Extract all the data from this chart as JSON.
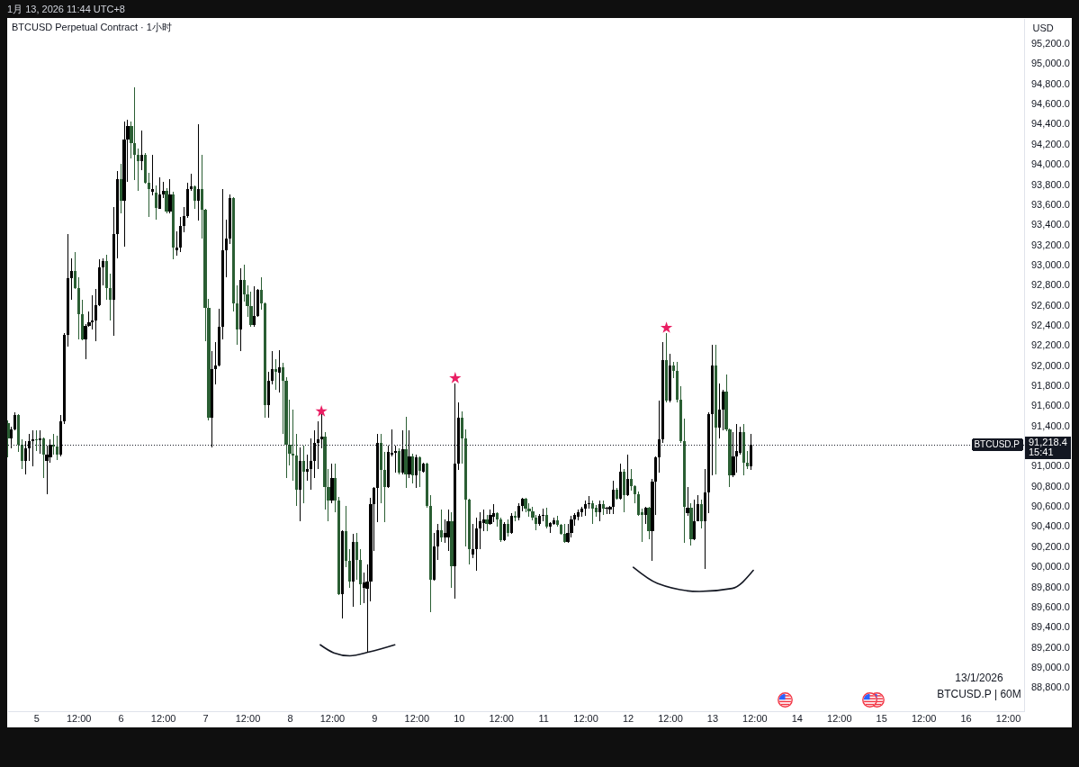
{
  "chart_data": {
    "type": "candlestick",
    "title": "BTCUSD Perpetual Contract · 1小时",
    "ylabel": "USD",
    "annotations": [
      "1月 13, 2026 11:44 UTC+8",
      "13/1/2026",
      "BTCUSD.P | 60M",
      "91,218.4",
      "15:41"
    ],
    "x": [
      "2026-01-04T16:00",
      "2026-01-04T17:00",
      "2026-01-04T18:00",
      "2026-01-04T19:00",
      "2026-01-04T20:00",
      "2026-01-04T21:00",
      "2026-01-04T22:00",
      "2026-01-04T23:00",
      "2026-01-05T00:00",
      "2026-01-05T01:00",
      "2026-01-05T02:00",
      "2026-01-05T03:00",
      "2026-01-05T04:00",
      "2026-01-05T05:00",
      "2026-01-05T06:00",
      "2026-01-05T07:00",
      "2026-01-05T08:00",
      "2026-01-05T09:00",
      "2026-01-05T10:00",
      "2026-01-05T11:00",
      "2026-01-05T12:00",
      "2026-01-05T13:00",
      "2026-01-05T14:00",
      "2026-01-05T15:00",
      "2026-01-05T16:00",
      "2026-01-05T17:00",
      "2026-01-05T18:00",
      "2026-01-05T19:00",
      "2026-01-05T20:00",
      "2026-01-05T21:00",
      "2026-01-05T22:00",
      "2026-01-05T23:00",
      "2026-01-06T00:00",
      "2026-01-06T01:00",
      "2026-01-06T02:00",
      "2026-01-06T03:00",
      "2026-01-06T04:00",
      "2026-01-06T05:00",
      "2026-01-06T06:00",
      "2026-01-06T07:00",
      "2026-01-06T08:00",
      "2026-01-06T09:00",
      "2026-01-06T10:00",
      "2026-01-06T11:00",
      "2026-01-06T12:00",
      "2026-01-06T13:00",
      "2026-01-06T14:00",
      "2026-01-06T15:00",
      "2026-01-06T16:00",
      "2026-01-06T17:00",
      "2026-01-06T18:00",
      "2026-01-06T19:00",
      "2026-01-06T20:00",
      "2026-01-06T21:00",
      "2026-01-06T22:00",
      "2026-01-06T23:00",
      "2026-01-07T00:00",
      "2026-01-07T01:00",
      "2026-01-07T02:00",
      "2026-01-07T03:00",
      "2026-01-07T04:00",
      "2026-01-07T05:00",
      "2026-01-07T06:00",
      "2026-01-07T07:00",
      "2026-01-07T08:00",
      "2026-01-07T09:00",
      "2026-01-07T10:00",
      "2026-01-07T11:00",
      "2026-01-07T12:00",
      "2026-01-07T13:00",
      "2026-01-07T14:00",
      "2026-01-07T15:00",
      "2026-01-07T16:00",
      "2026-01-07T17:00",
      "2026-01-07T18:00",
      "2026-01-07T19:00",
      "2026-01-07T20:00",
      "2026-01-07T21:00",
      "2026-01-07T22:00",
      "2026-01-07T23:00",
      "2026-01-08T00:00",
      "2026-01-08T01:00",
      "2026-01-08T02:00",
      "2026-01-08T03:00",
      "2026-01-08T04:00",
      "2026-01-08T05:00",
      "2026-01-08T06:00",
      "2026-01-08T07:00",
      "2026-01-08T08:00",
      "2026-01-08T09:00",
      "2026-01-08T10:00",
      "2026-01-08T11:00",
      "2026-01-08T12:00",
      "2026-01-08T13:00",
      "2026-01-08T14:00",
      "2026-01-08T15:00",
      "2026-01-08T16:00",
      "2026-01-08T17:00",
      "2026-01-08T18:00",
      "2026-01-08T19:00",
      "2026-01-08T20:00",
      "2026-01-08T21:00",
      "2026-01-08T22:00",
      "2026-01-08T23:00",
      "2026-01-09T00:00",
      "2026-01-09T01:00",
      "2026-01-09T02:00",
      "2026-01-09T03:00",
      "2026-01-09T04:00",
      "2026-01-09T05:00",
      "2026-01-09T06:00",
      "2026-01-09T07:00",
      "2026-01-09T08:00",
      "2026-01-09T09:00",
      "2026-01-09T10:00",
      "2026-01-09T11:00",
      "2026-01-09T12:00",
      "2026-01-09T13:00",
      "2026-01-09T14:00",
      "2026-01-09T15:00",
      "2026-01-09T16:00",
      "2026-01-09T17:00",
      "2026-01-09T18:00",
      "2026-01-09T19:00",
      "2026-01-09T20:00",
      "2026-01-09T21:00",
      "2026-01-09T22:00",
      "2026-01-09T23:00",
      "2026-01-10T00:00",
      "2026-01-10T01:00",
      "2026-01-10T02:00",
      "2026-01-10T03:00",
      "2026-01-10T04:00",
      "2026-01-10T05:00",
      "2026-01-10T06:00",
      "2026-01-10T07:00",
      "2026-01-10T08:00",
      "2026-01-10T09:00",
      "2026-01-10T10:00",
      "2026-01-10T11:00",
      "2026-01-10T12:00",
      "2026-01-10T13:00",
      "2026-01-10T14:00",
      "2026-01-10T15:00",
      "2026-01-10T16:00",
      "2026-01-10T17:00",
      "2026-01-10T18:00",
      "2026-01-10T19:00",
      "2026-01-10T20:00",
      "2026-01-10T21:00",
      "2026-01-10T22:00",
      "2026-01-10T23:00",
      "2026-01-11T00:00",
      "2026-01-11T01:00",
      "2026-01-11T02:00",
      "2026-01-11T03:00",
      "2026-01-11T04:00",
      "2026-01-11T05:00",
      "2026-01-11T06:00",
      "2026-01-11T07:00",
      "2026-01-11T08:00",
      "2026-01-11T09:00",
      "2026-01-11T10:00",
      "2026-01-11T11:00",
      "2026-01-11T12:00",
      "2026-01-11T13:00",
      "2026-01-11T14:00",
      "2026-01-11T15:00",
      "2026-01-11T16:00",
      "2026-01-11T17:00",
      "2026-01-11T18:00",
      "2026-01-11T19:00",
      "2026-01-11T20:00",
      "2026-01-11T21:00",
      "2026-01-11T22:00",
      "2026-01-11T23:00",
      "2026-01-12T00:00",
      "2026-01-12T01:00",
      "2026-01-12T02:00",
      "2026-01-12T03:00",
      "2026-01-12T04:00",
      "2026-01-12T05:00",
      "2026-01-12T06:00",
      "2026-01-12T07:00",
      "2026-01-12T08:00",
      "2026-01-12T09:00",
      "2026-01-12T10:00",
      "2026-01-12T11:00",
      "2026-01-12T12:00",
      "2026-01-12T13:00",
      "2026-01-12T14:00",
      "2026-01-12T15:00",
      "2026-01-12T16:00",
      "2026-01-12T17:00",
      "2026-01-12T18:00",
      "2026-01-12T19:00",
      "2026-01-12T20:00",
      "2026-01-12T21:00",
      "2026-01-12T22:00",
      "2026-01-12T23:00",
      "2026-01-13T00:00",
      "2026-01-13T01:00",
      "2026-01-13T02:00",
      "2026-01-13T03:00",
      "2026-01-13T04:00",
      "2026-01-13T05:00",
      "2026-01-13T06:00",
      "2026-01-13T07:00",
      "2026-01-13T08:00",
      "2026-01-13T09:00",
      "2026-01-13T10:00",
      "2026-01-13T11:00"
    ],
    "ohlc": [
      [
        91430,
        91460,
        91090,
        91280
      ],
      [
        91280,
        91400,
        91180,
        91370
      ],
      [
        91370,
        91540,
        91360,
        91510
      ],
      [
        91510,
        91520,
        91150,
        91220
      ],
      [
        91220,
        91270,
        90980,
        91060
      ],
      [
        91060,
        91250,
        90920,
        91180
      ],
      [
        91180,
        91330,
        91060,
        91250
      ],
      [
        91250,
        91360,
        91000,
        91270
      ],
      [
        91270,
        91360,
        91160,
        91260
      ],
      [
        91260,
        91360,
        91130,
        91280
      ],
      [
        91280,
        91290,
        90890,
        91120
      ],
      [
        91060,
        91210,
        90730,
        91120
      ],
      [
        91090,
        91270,
        91040,
        91220
      ],
      [
        91220,
        91330,
        91120,
        91200
      ],
      [
        91200,
        91310,
        91070,
        91120
      ],
      [
        91120,
        91510,
        91100,
        91450
      ],
      [
        91450,
        92330,
        91420,
        92310
      ],
      [
        92310,
        93310,
        92190,
        92870
      ],
      [
        92870,
        93070,
        92660,
        92950
      ],
      [
        92950,
        93130,
        92770,
        92780
      ],
      [
        92780,
        92880,
        92270,
        92520
      ],
      [
        92520,
        92660,
        92260,
        92270
      ],
      [
        92270,
        92420,
        92070,
        92400
      ],
      [
        92400,
        92540,
        92390,
        92440
      ],
      [
        92440,
        92700,
        92360,
        92450
      ],
      [
        92450,
        92770,
        92250,
        92610
      ],
      [
        92610,
        93060,
        92600,
        92980
      ],
      [
        92980,
        93070,
        92800,
        93040
      ],
      [
        93040,
        93110,
        92660,
        92780
      ],
      [
        92780,
        92920,
        92450,
        92660
      ],
      [
        92660,
        93580,
        92300,
        93310
      ],
      [
        93310,
        93940,
        93070,
        93860
      ],
      [
        93860,
        94010,
        93520,
        93640
      ],
      [
        93640,
        94430,
        93190,
        94250
      ],
      [
        94250,
        94450,
        93830,
        94390
      ],
      [
        94390,
        94430,
        94060,
        94220
      ],
      [
        94220,
        94770,
        93850,
        94100
      ],
      [
        94100,
        94160,
        93740,
        94040
      ],
      [
        94040,
        94340,
        93950,
        94100
      ],
      [
        94100,
        94120,
        93810,
        93820
      ],
      [
        93820,
        93920,
        93480,
        93760
      ],
      [
        93730,
        94100,
        93700,
        93760
      ],
      [
        93720,
        93800,
        93460,
        93570
      ],
      [
        93560,
        93880,
        93560,
        93710
      ],
      [
        93710,
        93830,
        93670,
        93740
      ],
      [
        93740,
        93770,
        93520,
        93540
      ],
      [
        93540,
        93860,
        93520,
        93710
      ],
      [
        93710,
        93730,
        93060,
        93180
      ],
      [
        93150,
        93340,
        93100,
        93180
      ],
      [
        93180,
        93480,
        93130,
        93390
      ],
      [
        93390,
        93580,
        93330,
        93490
      ],
      [
        93490,
        93820,
        93470,
        93760
      ],
      [
        93760,
        93910,
        93740,
        93790
      ],
      [
        93790,
        93800,
        93560,
        93640
      ],
      [
        93640,
        94400,
        93450,
        93760
      ],
      [
        93760,
        94100,
        93270,
        93550
      ],
      [
        93550,
        93560,
        92250,
        92580
      ],
      [
        92580,
        92670,
        91460,
        91490
      ],
      [
        91490,
        92150,
        91190,
        91970
      ],
      [
        91970,
        92240,
        91820,
        92010
      ],
      [
        92010,
        92570,
        92000,
        92390
      ],
      [
        92390,
        93760,
        92270,
        93150
      ],
      [
        93150,
        93460,
        92880,
        93270
      ],
      [
        93270,
        93710,
        93210,
        93670
      ],
      [
        93670,
        93680,
        92540,
        92620
      ],
      [
        92620,
        92800,
        92210,
        92360
      ],
      [
        92360,
        92970,
        92150,
        92860
      ],
      [
        92860,
        93010,
        92640,
        92710
      ],
      [
        92710,
        92800,
        92490,
        92600
      ],
      [
        92600,
        92740,
        92390,
        92410
      ],
      [
        92410,
        92790,
        92390,
        92500
      ],
      [
        92500,
        92770,
        92490,
        92760
      ],
      [
        92760,
        92880,
        92560,
        92620
      ],
      [
        92620,
        92630,
        91490,
        91610
      ],
      [
        91610,
        91940,
        91490,
        91850
      ],
      [
        91850,
        92150,
        91820,
        91970
      ],
      [
        91970,
        92070,
        91760,
        91940
      ],
      [
        91930,
        92160,
        91740,
        91990
      ],
      [
        91990,
        92030,
        91330,
        91850
      ],
      [
        91850,
        91890,
        90890,
        91220
      ],
      [
        91220,
        91670,
        91010,
        91130
      ],
      [
        91130,
        91570,
        90860,
        91110
      ],
      [
        91110,
        91330,
        90610,
        90770
      ],
      [
        90770,
        91190,
        90460,
        91060
      ],
      [
        91060,
        91210,
        90640,
        90950
      ],
      [
        90950,
        91120,
        90860,
        90980
      ],
      [
        90980,
        91280,
        90770,
        91060
      ],
      [
        91060,
        91360,
        90890,
        91240
      ],
      [
        91240,
        91450,
        90980,
        91270
      ],
      [
        91270,
        91520,
        91180,
        91300
      ],
      [
        91300,
        91340,
        90570,
        90800
      ],
      [
        90800,
        90980,
        90460,
        90660
      ],
      [
        90660,
        91030,
        90640,
        90890
      ],
      [
        90890,
        91030,
        90550,
        90660
      ],
      [
        90660,
        90700,
        89720,
        89730
      ],
      [
        89730,
        90370,
        89490,
        90360
      ],
      [
        90360,
        90610,
        90000,
        90060
      ],
      [
        90060,
        90180,
        89800,
        89860
      ],
      [
        89860,
        90330,
        89610,
        90250
      ],
      [
        90250,
        90340,
        89880,
        90070
      ],
      [
        90070,
        90180,
        89630,
        89830
      ],
      [
        89800,
        89950,
        89640,
        89850
      ],
      [
        89790,
        90030,
        89150,
        89860
      ],
      [
        89860,
        90690,
        89660,
        90630
      ],
      [
        90630,
        90800,
        90160,
        90790
      ],
      [
        90790,
        91330,
        90450,
        91240
      ],
      [
        91240,
        91330,
        90640,
        90970
      ],
      [
        90970,
        91150,
        90450,
        90800
      ],
      [
        90800,
        91210,
        90790,
        91150
      ],
      [
        91120,
        91370,
        91100,
        91140
      ],
      [
        91140,
        91210,
        90940,
        91160
      ],
      [
        91160,
        91180,
        90920,
        90940
      ],
      [
        90940,
        91360,
        90920,
        91170
      ],
      [
        91170,
        91500,
        90790,
        90920
      ],
      [
        90920,
        91360,
        90890,
        91100
      ],
      [
        91100,
        91130,
        90830,
        90910
      ],
      [
        90910,
        91120,
        90790,
        91090
      ],
      [
        91090,
        91100,
        90800,
        90960
      ],
      [
        90950,
        91040,
        90940,
        91030
      ],
      [
        91030,
        91040,
        90590,
        90610
      ],
      [
        90610,
        90720,
        89550,
        89880
      ],
      [
        89880,
        90340,
        89870,
        90210
      ],
      [
        90210,
        90430,
        90070,
        90370
      ],
      [
        90370,
        90570,
        90250,
        90300
      ],
      [
        90300,
        90480,
        90240,
        90340
      ],
      [
        90300,
        90570,
        90160,
        90460
      ],
      [
        90460,
        90550,
        89800,
        90010
      ],
      [
        90010,
        91830,
        89690,
        91030
      ],
      [
        91030,
        91640,
        90970,
        91490
      ],
      [
        91490,
        91550,
        91030,
        91280
      ],
      [
        91280,
        91370,
        90210,
        90670
      ],
      [
        90670,
        90680,
        90030,
        90180
      ],
      [
        90130,
        90430,
        90090,
        90180
      ],
      [
        90180,
        90490,
        89970,
        90390
      ],
      [
        90390,
        90550,
        90180,
        90460
      ],
      [
        90440,
        90570,
        90360,
        90480
      ],
      [
        90480,
        90520,
        90360,
        90430
      ],
      [
        90430,
        90570,
        90420,
        90520
      ],
      [
        90500,
        90630,
        90450,
        90540
      ],
      [
        90540,
        90550,
        90400,
        90480
      ],
      [
        90480,
        90490,
        90250,
        90270
      ],
      [
        90270,
        90450,
        90260,
        90430
      ],
      [
        90430,
        90480,
        90310,
        90340
      ],
      [
        90340,
        90540,
        90330,
        90510
      ],
      [
        90510,
        90560,
        90460,
        90490
      ],
      [
        90490,
        90640,
        90470,
        90610
      ],
      [
        90610,
        90690,
        90560,
        90680
      ],
      [
        90680,
        90690,
        90550,
        90580
      ],
      [
        90580,
        90640,
        90500,
        90560
      ],
      [
        90560,
        90600,
        90470,
        90490
      ],
      [
        90490,
        90520,
        90370,
        90430
      ],
      [
        90430,
        90530,
        90410,
        90510
      ],
      [
        90510,
        90580,
        90460,
        90520
      ],
      [
        90520,
        90590,
        90390,
        90400
      ],
      [
        90400,
        90450,
        90340,
        90440
      ],
      [
        90430,
        90490,
        90420,
        90470
      ],
      [
        90470,
        90510,
        90400,
        90420
      ],
      [
        90420,
        90430,
        90320,
        90330
      ],
      [
        90330,
        90430,
        90240,
        90250
      ],
      [
        90250,
        90430,
        90240,
        90340
      ],
      [
        90340,
        90510,
        90300,
        90480
      ],
      [
        90480,
        90540,
        90410,
        90520
      ],
      [
        90500,
        90570,
        90470,
        90550
      ],
      [
        90550,
        90600,
        90500,
        90580
      ],
      [
        90580,
        90660,
        90510,
        90630
      ],
      [
        90630,
        90710,
        90580,
        90640
      ],
      [
        90640,
        90660,
        90430,
        90580
      ],
      [
        90590,
        90620,
        90500,
        90550
      ],
      [
        90550,
        90660,
        90460,
        90630
      ],
      [
        90630,
        90660,
        90520,
        90580
      ],
      [
        90580,
        90600,
        90530,
        90590
      ],
      [
        90570,
        90610,
        90530,
        90600
      ],
      [
        90600,
        90860,
        90530,
        90770
      ],
      [
        90770,
        90790,
        90670,
        90680
      ],
      [
        90680,
        91030,
        90670,
        90950
      ],
      [
        90950,
        90980,
        90550,
        90720
      ],
      [
        90720,
        91120,
        90710,
        90880
      ],
      [
        90880,
        90980,
        90760,
        90810
      ],
      [
        90810,
        90820,
        90640,
        90730
      ],
      [
        90730,
        90750,
        90510,
        90520
      ],
      [
        90550,
        90580,
        90250,
        90520
      ],
      [
        90520,
        90600,
        90430,
        90590
      ],
      [
        90590,
        90600,
        90280,
        90360
      ],
      [
        90360,
        90880,
        90060,
        90850
      ],
      [
        90850,
        91100,
        90520,
        91090
      ],
      [
        91090,
        91660,
        90940,
        91270
      ],
      [
        91270,
        92240,
        91240,
        92060
      ],
      [
        92060,
        92330,
        91640,
        91660
      ],
      [
        91660,
        92120,
        91640,
        92010
      ],
      [
        92010,
        92040,
        91880,
        91950
      ],
      [
        91950,
        92040,
        91640,
        91670
      ],
      [
        91670,
        91800,
        91240,
        91250
      ],
      [
        91250,
        91480,
        90240,
        90600
      ],
      [
        90540,
        90800,
        90510,
        90590
      ],
      [
        90590,
        90640,
        90220,
        90280
      ],
      [
        90280,
        90670,
        90270,
        90460
      ],
      [
        90460,
        90720,
        90460,
        90630
      ],
      [
        90630,
        90670,
        90390,
        90460
      ],
      [
        90460,
        90980,
        89980,
        90740
      ],
      [
        90740,
        91540,
        90540,
        91520
      ],
      [
        91520,
        92210,
        90910,
        92010
      ],
      [
        92010,
        92210,
        90920,
        91390
      ],
      [
        91390,
        91830,
        91280,
        91570
      ],
      [
        91570,
        91760,
        91360,
        91750
      ],
      [
        91750,
        91920,
        91350,
        91370
      ],
      [
        91370,
        91380,
        90800,
        90910
      ],
      [
        90910,
        91340,
        90900,
        91100
      ],
      [
        91100,
        91420,
        90940,
        91160
      ],
      [
        91140,
        91400,
        91120,
        91340
      ],
      [
        91340,
        91420,
        90910,
        91040
      ],
      [
        91040,
        91160,
        90980,
        91000
      ],
      [
        91000,
        91330,
        90970,
        91218.4
      ]
    ],
    "colors": [
      "#2a5e33",
      "#000000",
      "#000000",
      "#2a5e33",
      "#2a5e33",
      "#000000",
      "#000000",
      "#000000",
      "#2a5e33",
      "#000000",
      "#2a5e33",
      "#000000",
      "#000000",
      "#2a5e33",
      "#2a5e33",
      "#000000",
      "#000000",
      "#000000",
      "#000000",
      "#2a5e33",
      "#2a5e33",
      "#2a5e33",
      "#000000",
      "#000000",
      "#000000",
      "#000000",
      "#000000",
      "#000000",
      "#2a5e33",
      "#2a5e33",
      "#000000",
      "#000000",
      "#2a5e33",
      "#000000",
      "#000000",
      "#2a5e33",
      "#2a5e33",
      "#2a5e33",
      "#000000",
      "#2a5e33",
      "#2a5e33",
      "#000000",
      "#2a5e33",
      "#000000",
      "#000000",
      "#2a5e33",
      "#000000",
      "#2a5e33",
      "#000000",
      "#000000",
      "#000000",
      "#000000",
      "#000000",
      "#2a5e33",
      "#000000",
      "#2a5e33",
      "#2a5e33",
      "#2a5e33",
      "#000000",
      "#000000",
      "#000000",
      "#000000",
      "#000000",
      "#000000",
      "#2a5e33",
      "#2a5e33",
      "#000000",
      "#2a5e33",
      "#2a5e33",
      "#2a5e33",
      "#000000",
      "#000000",
      "#2a5e33",
      "#2a5e33",
      "#000000",
      "#000000",
      "#2a5e33",
      "#000000",
      "#2a5e33",
      "#2a5e33",
      "#2a5e33",
      "#2a5e33",
      "#2a5e33",
      "#000000",
      "#2a5e33",
      "#000000",
      "#000000",
      "#000000",
      "#000000",
      "#000000",
      "#2a5e33",
      "#2a5e33",
      "#000000",
      "#2a5e33",
      "#2a5e33",
      "#000000",
      "#2a5e33",
      "#2a5e33",
      "#000000",
      "#2a5e33",
      "#2a5e33",
      "#000000",
      "#000000",
      "#000000",
      "#000000",
      "#000000",
      "#2a5e33",
      "#2a5e33",
      "#000000",
      "#000000",
      "#000000",
      "#2a5e33",
      "#000000",
      "#2a5e33",
      "#000000",
      "#2a5e33",
      "#000000",
      "#2a5e33",
      "#000000",
      "#2a5e33",
      "#2a5e33",
      "#000000",
      "#000000",
      "#2a5e33",
      "#000000",
      "#000000",
      "#2a5e33",
      "#000000",
      "#000000",
      "#2a5e33",
      "#2a5e33",
      "#2a5e33",
      "#000000",
      "#000000",
      "#000000",
      "#000000",
      "#2a5e33",
      "#000000",
      "#000000",
      "#2a5e33",
      "#2a5e33",
      "#000000",
      "#2a5e33",
      "#000000",
      "#2a5e33",
      "#000000",
      "#000000",
      "#2a5e33",
      "#2a5e33",
      "#2a5e33",
      "#2a5e33",
      "#000000",
      "#000000",
      "#2a5e33",
      "#000000",
      "#000000",
      "#2a5e33",
      "#2a5e33",
      "#2a5e33",
      "#000000",
      "#000000",
      "#000000",
      "#000000",
      "#000000",
      "#000000",
      "#000000",
      "#2a5e33",
      "#2a5e33",
      "#000000",
      "#2a5e33",
      "#000000",
      "#000000",
      "#000000",
      "#2a5e33",
      "#000000",
      "#2a5e33",
      "#000000",
      "#2a5e33",
      "#2a5e33",
      "#2a5e33",
      "#2a5e33",
      "#000000",
      "#2a5e33",
      "#000000",
      "#000000",
      "#000000",
      "#000000",
      "#2a5e33",
      "#000000",
      "#2a5e33",
      "#2a5e33",
      "#2a5e33",
      "#2a5e33",
      "#000000",
      "#2a5e33",
      "#000000",
      "#000000",
      "#2a5e33",
      "#000000",
      "#000000",
      "#000000",
      "#2a5e33",
      "#000000",
      "#000000",
      "#2a5e33",
      "#2a5e33",
      "#000000",
      "#000000",
      "#000000",
      "#2a5e33",
      "#2a5e33",
      "#000000"
    ],
    "series": [
      {
        "type": "line",
        "color": "#131722",
        "x": [
          "2026-01-08T08:40",
          "2026-01-08T12:30",
          "2026-01-08T17:05",
          "2026-01-08T22:45",
          "2026-01-09T05:50"
        ],
        "values": [
          89230,
          89150,
          89120,
          89160,
          89230
        ]
      },
      {
        "type": "line",
        "color": "#131722",
        "x": [
          "2026-01-12T01:35",
          "2026-01-12T08:25",
          "2026-01-12T20:20",
          "2026-01-13T05:40",
          "2026-01-13T11:40"
        ],
        "values": [
          90000,
          89840,
          89760,
          89790,
          89970
        ]
      },
      {
        "type": "scatter",
        "marker": "star",
        "color": "#e91e63",
        "x": [
          "2026-01-08T09:00",
          "2026-01-09T23:00",
          "2026-01-12T11:00"
        ],
        "values": [
          91550,
          91880,
          92380
        ]
      }
    ],
    "xlim": [
      "2026-01-04T15:45",
      "2026-01-16T16:35"
    ],
    "ylim": [
      88570,
      95460
    ],
    "xticks": [
      {
        "value": "2026-01-05T00:00",
        "label": "5"
      },
      {
        "value": "2026-01-05T12:00",
        "label": "12:00"
      },
      {
        "value": "2026-01-06T00:00",
        "label": "6"
      },
      {
        "value": "2026-01-06T12:00",
        "label": "12:00"
      },
      {
        "value": "2026-01-07T00:00",
        "label": "7"
      },
      {
        "value": "2026-01-07T12:00",
        "label": "12:00"
      },
      {
        "value": "2026-01-08T00:00",
        "label": "8"
      },
      {
        "value": "2026-01-08T12:00",
        "label": "12:00"
      },
      {
        "value": "2026-01-09T00:00",
        "label": "9"
      },
      {
        "value": "2026-01-09T12:00",
        "label": "12:00"
      },
      {
        "value": "2026-01-10T00:00",
        "label": "10"
      },
      {
        "value": "2026-01-10T12:00",
        "label": "12:00"
      },
      {
        "value": "2026-01-11T00:00",
        "label": "11"
      },
      {
        "value": "2026-01-11T12:00",
        "label": "12:00"
      },
      {
        "value": "2026-01-12T00:00",
        "label": "12"
      },
      {
        "value": "2026-01-12T12:00",
        "label": "12:00"
      },
      {
        "value": "2026-01-13T00:00",
        "label": "13"
      },
      {
        "value": "2026-01-13T12:00",
        "label": "12:00"
      },
      {
        "value": "2026-01-14T00:00",
        "label": "14"
      },
      {
        "value": "2026-01-14T12:00",
        "label": "12:00"
      },
      {
        "value": "2026-01-15T00:00",
        "label": "15"
      },
      {
        "value": "2026-01-15T12:00",
        "label": "12:00"
      },
      {
        "value": "2026-01-16T00:00",
        "label": "16"
      },
      {
        "value": "2026-01-16T12:00",
        "label": "12:00"
      }
    ],
    "yticks": [
      {
        "value": 88800,
        "label": "88,800.0"
      },
      {
        "value": 89000,
        "label": "89,000.0"
      },
      {
        "value": 89200,
        "label": "89,200.0"
      },
      {
        "value": 89400,
        "label": "89,400.0"
      },
      {
        "value": 89600,
        "label": "89,600.0"
      },
      {
        "value": 89800,
        "label": "89,800.0"
      },
      {
        "value": 90000,
        "label": "90,000.0"
      },
      {
        "value": 90200,
        "label": "90,200.0"
      },
      {
        "value": 90400,
        "label": "90,400.0"
      },
      {
        "value": 90600,
        "label": "90,600.0"
      },
      {
        "value": 90800,
        "label": "90,800.0"
      },
      {
        "value": 91000,
        "label": "91,000.0"
      },
      {
        "value": 91400,
        "label": "91,400.0"
      },
      {
        "value": 91600,
        "label": "91,600.0"
      },
      {
        "value": 91800,
        "label": "91,800.0"
      },
      {
        "value": 92000,
        "label": "92,000.0"
      },
      {
        "value": 92200,
        "label": "92,200.0"
      },
      {
        "value": 92400,
        "label": "92,400.0"
      },
      {
        "value": 92600,
        "label": "92,600.0"
      },
      {
        "value": 92800,
        "label": "92,800.0"
      },
      {
        "value": 93000,
        "label": "93,000.0"
      },
      {
        "value": 93200,
        "label": "93,200.0"
      },
      {
        "value": 93400,
        "label": "93,400.0"
      },
      {
        "value": 93600,
        "label": "93,600.0"
      },
      {
        "value": 93800,
        "label": "93,800.0"
      },
      {
        "value": 94000,
        "label": "94,000.0"
      },
      {
        "value": 94200,
        "label": "94,200.0"
      },
      {
        "value": 94400,
        "label": "94,400.0"
      },
      {
        "value": 94600,
        "label": "94,600.0"
      },
      {
        "value": 94800,
        "label": "94,800.0"
      },
      {
        "value": 95000,
        "label": "95,000.0"
      },
      {
        "value": 95200,
        "label": "95,200.0"
      }
    ],
    "ref_lines": [
      {
        "axis": "y",
        "value": 91218.4,
        "label": "BTCUSD.P",
        "color": "#131722",
        "line_style": "dotted"
      }
    ]
  }
}
